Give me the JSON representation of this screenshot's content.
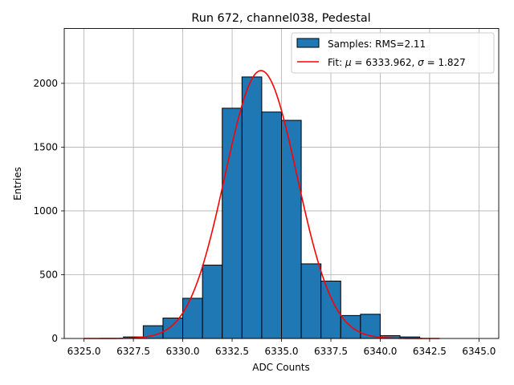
{
  "chart_data": {
    "type": "bar",
    "title": "Run 672, channel038, Pedestal",
    "xlabel": "ADC Counts",
    "ylabel": "Entries",
    "xlim": [
      6324.0,
      6346.0
    ],
    "ylim": [
      0,
      2430
    ],
    "xticks": [
      6325.0,
      6327.5,
      6330.0,
      6332.5,
      6335.0,
      6337.5,
      6340.0,
      6342.5,
      6345.0
    ],
    "xtick_labels": [
      "6325.0",
      "6327.5",
      "6330.0",
      "6332.5",
      "6335.0",
      "6337.5",
      "6340.0",
      "6342.5",
      "6345.0"
    ],
    "yticks": [
      0,
      500,
      1000,
      1500,
      2000
    ],
    "ytick_labels": [
      "0",
      "500",
      "1000",
      "1500",
      "2000"
    ],
    "grid": true,
    "legend_position": "top-right",
    "histogram": {
      "name": "Samples: RMS=2.11",
      "color": "#1f77b4",
      "edge_color": "#000000",
      "bins": [
        {
          "x0": 6326.0,
          "x1": 6327.0,
          "count": 0
        },
        {
          "x0": 6327.0,
          "x1": 6328.0,
          "count": 12
        },
        {
          "x0": 6328.0,
          "x1": 6329.0,
          "count": 100
        },
        {
          "x0": 6329.0,
          "x1": 6330.0,
          "count": 160
        },
        {
          "x0": 6330.0,
          "x1": 6331.0,
          "count": 315
        },
        {
          "x0": 6331.0,
          "x1": 6332.0,
          "count": 575
        },
        {
          "x0": 6332.0,
          "x1": 6333.0,
          "count": 1805
        },
        {
          "x0": 6333.0,
          "x1": 6334.0,
          "count": 2050
        },
        {
          "x0": 6334.0,
          "x1": 6335.0,
          "count": 1775
        },
        {
          "x0": 6335.0,
          "x1": 6336.0,
          "count": 1710
        },
        {
          "x0": 6336.0,
          "x1": 6337.0,
          "count": 585
        },
        {
          "x0": 6337.0,
          "x1": 6338.0,
          "count": 450
        },
        {
          "x0": 6338.0,
          "x1": 6339.0,
          "count": 180
        },
        {
          "x0": 6339.0,
          "x1": 6340.0,
          "count": 190
        },
        {
          "x0": 6340.0,
          "x1": 6341.0,
          "count": 22
        },
        {
          "x0": 6341.0,
          "x1": 6342.0,
          "count": 12
        },
        {
          "x0": 6342.0,
          "x1": 6343.0,
          "count": 0
        }
      ]
    },
    "fit": {
      "type": "gaussian",
      "legend_prefix": "Fit: ",
      "mu_symbol": "μ",
      "mu_text": " = 6333.962, ",
      "sigma_symbol": "σ",
      "sigma_text": " = 1.827",
      "mu": 6333.962,
      "sigma": 1.827,
      "amplitude": 2100,
      "x_range": [
        6325.0,
        6343.0
      ],
      "color": "#ff0000"
    }
  }
}
